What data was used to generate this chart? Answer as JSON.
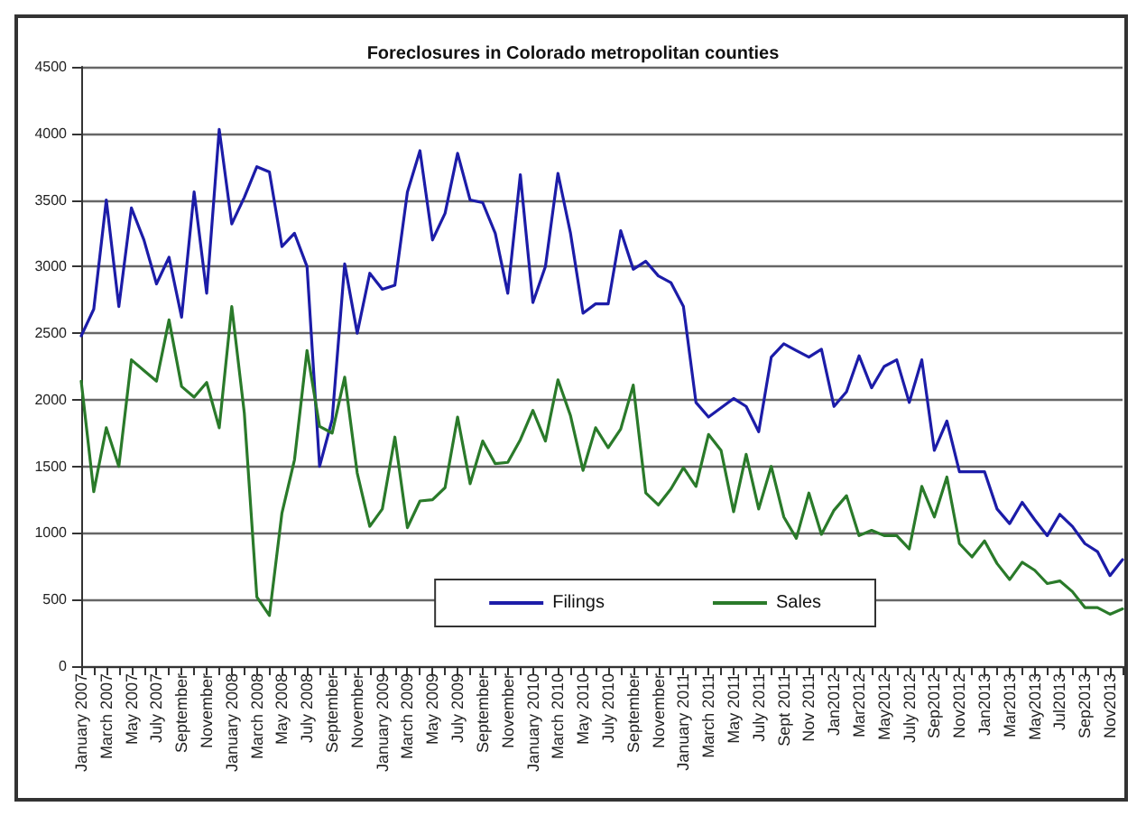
{
  "chart_data": {
    "type": "line",
    "title": "Foreclosures in Colorado metropolitan counties",
    "categories": [
      "January 2007",
      null,
      "March 2007",
      null,
      "May 2007",
      null,
      "July 2007",
      null,
      "September",
      null,
      "November",
      null,
      "January 2008",
      null,
      "March 2008",
      null,
      "May 2008",
      null,
      "July 2008",
      null,
      "September",
      null,
      "November",
      null,
      "January 2009",
      null,
      "March 2009",
      null,
      "May 2009",
      null,
      "July 2009",
      null,
      "September",
      null,
      "November",
      null,
      "January 2010",
      null,
      "March 2010",
      null,
      "May 2010",
      null,
      "July 2010",
      null,
      "September",
      null,
      "November",
      null,
      "January 2011",
      null,
      "March 2011",
      null,
      "May 2011",
      null,
      "July 2011",
      null,
      "Sept 2011",
      null,
      "Nov 2011",
      null,
      "Jan2012",
      null,
      "Mar2012",
      null,
      "May2012",
      null,
      "July 2012",
      null,
      "Sep2012",
      null,
      "Nov2012",
      null,
      "Jan2013",
      null,
      "Mar2013",
      null,
      "May2013",
      null,
      "Jul2013",
      null,
      "Sep2013",
      null,
      "Nov2013",
      null
    ],
    "series": [
      {
        "name": "Filings",
        "color": "#1c1ca8",
        "values": [
          2480,
          2680,
          3500,
          2700,
          3440,
          3200,
          2870,
          3070,
          2620,
          3560,
          2800,
          4030,
          3320,
          3520,
          3750,
          3710,
          3150,
          3250,
          3000,
          1500,
          1850,
          3020,
          2500,
          2950,
          2830,
          2860,
          3560,
          3870,
          3200,
          3400,
          3850,
          3500,
          3480,
          3250,
          2800,
          3690,
          2730,
          3000,
          3700,
          3250,
          2650,
          2720,
          2720,
          3270,
          2980,
          3040,
          2930,
          2880,
          2700,
          1980,
          1870,
          1940,
          2010,
          1950,
          1760,
          2320,
          2420,
          2370,
          2320,
          2380,
          1950,
          2060,
          2330,
          2090,
          2250,
          2300,
          1980,
          2300,
          1620,
          1840,
          1460,
          1460,
          1460,
          1180,
          1070,
          1230,
          1100,
          980,
          1140,
          1050,
          920,
          860,
          680,
          800
        ]
      },
      {
        "name": "Sales",
        "color": "#2a7a2a",
        "values": [
          2140,
          1310,
          1790,
          1500,
          2300,
          2220,
          2140,
          2600,
          2100,
          2020,
          2130,
          1790,
          2700,
          1900,
          520,
          380,
          1150,
          1550,
          2370,
          1800,
          1750,
          2170,
          1450,
          1050,
          1180,
          1720,
          1040,
          1240,
          1250,
          1340,
          1870,
          1370,
          1690,
          1520,
          1530,
          1700,
          1920,
          1690,
          2150,
          1880,
          1470,
          1790,
          1640,
          1780,
          2110,
          1300,
          1210,
          1330,
          1490,
          1350,
          1740,
          1620,
          1160,
          1590,
          1180,
          1500,
          1120,
          960,
          1300,
          990,
          1170,
          1280,
          980,
          1020,
          980,
          980,
          880,
          1350,
          1120,
          1420,
          920,
          820,
          940,
          770,
          650,
          780,
          720,
          620,
          640,
          560,
          440,
          440,
          390,
          430
        ]
      }
    ],
    "ylim": [
      0,
      4500
    ],
    "yticks": [
      0,
      500,
      1000,
      1500,
      2000,
      2500,
      3000,
      3500,
      4000,
      4500
    ],
    "grid": "y",
    "legend": "bottom right",
    "marker": "none",
    "line_style": "solid"
  }
}
